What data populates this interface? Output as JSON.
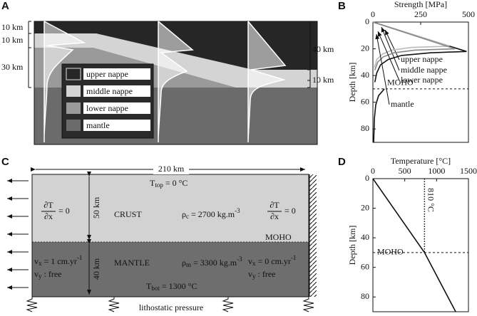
{
  "panel_a": {
    "label": "A",
    "left_dims": [
      "10 km",
      "10 km",
      "30 km"
    ],
    "right_dims": [
      "40 km",
      "10 km"
    ],
    "legend": [
      "upper nappe",
      "middle nappe",
      "lower nappe",
      "mantle"
    ]
  },
  "panel_c": {
    "label": "C",
    "width": "210 km",
    "t_top": {
      "symbol": "T",
      "sub": "top",
      "rest": " = 0 °C"
    },
    "crust": "CRUST",
    "rho_c": {
      "symbol": "ρ",
      "sub": "c",
      "rest": " = 2700 kg.m",
      "sup": "-3"
    },
    "bc_left": {
      "num": "∂T",
      "den": "∂x",
      "rest": "= 0"
    },
    "bc_right": {
      "num": "∂T",
      "den": "∂x",
      "rest": "= 0"
    },
    "moho": "MOHO",
    "mantle": "MANTLE",
    "rho_m": {
      "symbol": "ρ",
      "sub": "m",
      "rest": " = 3300 kg.m",
      "sup": "-3"
    },
    "vx_left": {
      "symbol": "v",
      "sub": "x",
      "rest": " = 1 cm.yr",
      "sup": "-1"
    },
    "vy_left": {
      "symbol": "v",
      "sub": "y",
      "rest": " : free"
    },
    "vx_right": {
      "symbol": "v",
      "sub": "x",
      "rest": " = 0 cm.yr",
      "sup": "-1"
    },
    "vy_right": {
      "symbol": "v",
      "sub": "y",
      "rest": " : free"
    },
    "t_bot": {
      "symbol": "T",
      "sub": "bot",
      "rest": " = 1300 °C"
    },
    "crust_thickness": "50 km",
    "mantle_thickness": "40 km",
    "bottom": "lithostatic pressure"
  },
  "chart_data": [
    {
      "type": "line",
      "panel": "B",
      "xlabel": "Strength [MPa]",
      "ylabel": "Depth [km]",
      "xlim": [
        0,
        500
      ],
      "xticks": [
        0,
        250,
        500
      ],
      "ylim": [
        0,
        90
      ],
      "yticks": [
        0,
        20,
        40,
        60,
        80
      ],
      "y_inverted": true,
      "series": [
        {
          "name": "upper nappe",
          "color": "#111111",
          "x": [
            0,
            490,
            300,
            150,
            80,
            40,
            20,
            10
          ],
          "y": [
            0,
            22,
            23,
            25,
            28,
            32,
            38,
            45
          ]
        },
        {
          "name": "middle nappe",
          "color": "#bbbbbb",
          "x": [
            0,
            400,
            200,
            100,
            50,
            20,
            8
          ],
          "y": [
            0,
            18,
            19,
            21,
            24,
            28,
            34
          ]
        },
        {
          "name": "lower nappe",
          "color": "#888888",
          "x": [
            0,
            430,
            220,
            110,
            55,
            25,
            10
          ],
          "y": [
            0,
            20,
            21,
            23,
            26,
            30,
            36
          ]
        },
        {
          "name": "mantle",
          "color": "#111111",
          "x": [
            60,
            30,
            15,
            8,
            4
          ],
          "y": [
            50,
            55,
            62,
            72,
            90
          ]
        }
      ],
      "reference_line": {
        "label": "MOHO",
        "value": 50
      }
    },
    {
      "type": "line",
      "panel": "D",
      "xlabel": "Temperature [°C]",
      "ylabel": "Depth [km]",
      "xlim": [
        0,
        1500
      ],
      "xticks": [
        0,
        500,
        1000,
        1500
      ],
      "ylim": [
        0,
        90
      ],
      "yticks": [
        0,
        20,
        40,
        60,
        80
      ],
      "y_inverted": true,
      "series": [
        {
          "color": "#111111",
          "x": [
            0,
            810,
            1300
          ],
          "y": [
            0,
            50,
            90
          ]
        }
      ],
      "reference_line": {
        "label": "MOHO",
        "value": 50
      },
      "annotation": {
        "label": "810 °C",
        "value": 810
      }
    }
  ]
}
